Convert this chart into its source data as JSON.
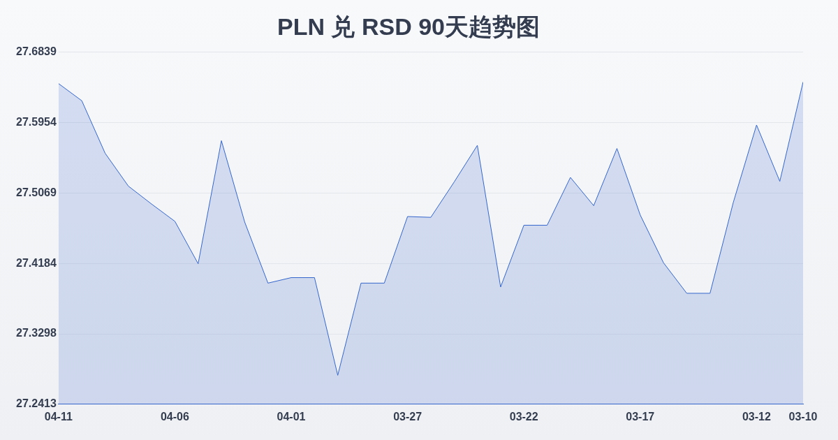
{
  "chart_data": {
    "type": "area",
    "title": "PLN 兑 RSD 90天趋势图",
    "x": [
      "--04-11",
      "--04-10",
      "--04-09",
      "--04-08",
      "--04-07",
      "--04-06",
      "--04-05",
      "--04-04",
      "--04-03",
      "--04-02",
      "--04-01",
      "--03-31",
      "--03-30",
      "--03-29",
      "--03-28",
      "--03-27",
      "--03-26",
      "--03-25",
      "--03-24",
      "--03-23",
      "--03-22",
      "--03-21",
      "--03-20",
      "--03-19",
      "--03-18",
      "--03-17",
      "--03-16",
      "--03-15",
      "--03-14",
      "--03-13",
      "--03-12",
      "--03-11",
      "--03-10"
    ],
    "series": [
      {
        "color": "#3566cc",
        "values": [
          27.6445,
          27.6229,
          27.557,
          27.5156,
          27.493,
          27.4713,
          27.418,
          27.5727,
          27.4704,
          27.3936,
          27.4005,
          27.4005,
          27.2777,
          27.3936,
          27.3936,
          27.4773,
          27.4763,
          27.5206,
          27.5668,
          27.3887,
          27.4664,
          27.4664,
          27.5265,
          27.491,
          27.5629,
          27.4793,
          27.4192,
          27.3808,
          27.3808,
          27.495,
          27.5924,
          27.5216,
          27.6465
        ]
      }
    ],
    "xlim": [
      "--04-11",
      "--03-10"
    ],
    "xticks": [
      {
        "value": "--04-11",
        "label": "04-11"
      },
      {
        "value": "--04-06",
        "label": "04-06"
      },
      {
        "value": "--04-01",
        "label": "04-01"
      },
      {
        "value": "--03-27",
        "label": "03-27"
      },
      {
        "value": "--03-22",
        "label": "03-22"
      },
      {
        "value": "--03-17",
        "label": "03-17"
      },
      {
        "value": "--03-12",
        "label": "03-12"
      },
      {
        "value": "--03-10",
        "label": "03-10"
      }
    ],
    "ylim": [
      27.2413,
      27.6839
    ],
    "yticks": [
      27.2413,
      27.3298,
      27.4184,
      27.5069,
      27.5954,
      27.6839
    ],
    "grid": "y",
    "marker": "none",
    "line_style": "solid",
    "legend": false
  }
}
